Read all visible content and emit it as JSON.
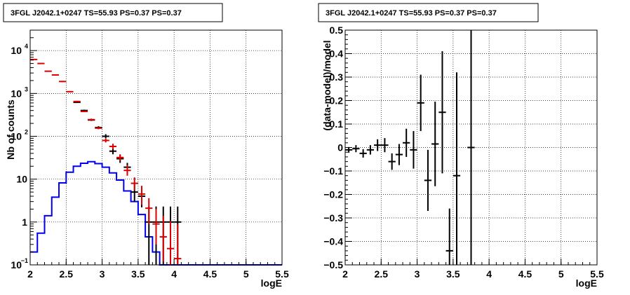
{
  "chart_data": [
    {
      "type": "histogram",
      "title": "3FGL J2042.1+0247 TS=55.93 PS=0.37 PS=0.37",
      "xlabel": "logE",
      "ylabel": "Nb of counts",
      "xlim": [
        2,
        5.5
      ],
      "ylim": [
        0.1,
        30000
      ],
      "yscale": "log",
      "grid": true,
      "xticks": [
        "2",
        "2.5",
        "3",
        "3.5",
        "4",
        "4.5",
        "5",
        "5.5"
      ],
      "yticks": [
        {
          "value": 0.1,
          "mantissa": "10",
          "exp": "−1"
        },
        {
          "value": 1,
          "mantissa": "1",
          "exp": ""
        },
        {
          "value": 10,
          "mantissa": "10",
          "exp": ""
        },
        {
          "value": 100,
          "mantissa": "10",
          "exp": "2"
        },
        {
          "value": 1000,
          "mantissa": "10",
          "exp": "3"
        },
        {
          "value": 10000,
          "mantissa": "10",
          "exp": "4"
        }
      ],
      "bin_edges": [
        2.0,
        2.1,
        2.2,
        2.3,
        2.4,
        2.5,
        2.6,
        2.7,
        2.8,
        2.9,
        3.0,
        3.1,
        3.2,
        3.3,
        3.4,
        3.5,
        3.6,
        3.7,
        3.8,
        3.9,
        4.0,
        4.1,
        4.2,
        4.3,
        4.4,
        4.5,
        4.6,
        4.7,
        4.8,
        4.9,
        5.0,
        5.1,
        5.2,
        5.3,
        5.4,
        5.5
      ],
      "series": [
        {
          "style": "step",
          "color": "#0000ee",
          "values": [
            0.2,
            0.55,
            1.4,
            3.8,
            8.2,
            14.5,
            20,
            23.5,
            25.5,
            23,
            19,
            14,
            9.5,
            5.3,
            3.0,
            1.5,
            0.45,
            0.2,
            0.1,
            0.1,
            0.1,
            0.1,
            0.1,
            0.1,
            0.1,
            0.1,
            0.1,
            0.1,
            0.1,
            0.1,
            0.1,
            0.1,
            0.1,
            0.1,
            0.1
          ]
        },
        {
          "style": "errorbar",
          "color": "#000000",
          "points": [
            {
              "x": 2.65,
              "y": 620,
              "lo": 600,
              "hi": 645
            },
            {
              "x": 2.75,
              "y": 400,
              "lo": 385,
              "hi": 418
            },
            {
              "x": 2.85,
              "y": 240,
              "lo": 228,
              "hi": 256
            },
            {
              "x": 2.95,
              "y": 160,
              "lo": 150,
              "hi": 172
            },
            {
              "x": 3.05,
              "y": 100,
              "lo": 90,
              "hi": 112
            },
            {
              "x": 3.15,
              "y": 45,
              "lo": 38,
              "hi": 53
            },
            {
              "x": 3.25,
              "y": 30,
              "lo": 24,
              "hi": 37
            },
            {
              "x": 3.35,
              "y": 19,
              "lo": 14,
              "hi": 24
            },
            {
              "x": 3.45,
              "y": 5,
              "lo": 3,
              "hi": 8
            },
            {
              "x": 3.55,
              "y": 4,
              "lo": 2.2,
              "hi": 6.5
            },
            {
              "x": 3.65,
              "y": 1,
              "lo": 0.1,
              "hi": 2.3
            },
            {
              "x": 3.75,
              "y": 1,
              "lo": 0.1,
              "hi": 2.3
            },
            {
              "x": 3.85,
              "y": 1,
              "lo": 0.1,
              "hi": 2.3
            },
            {
              "x": 3.95,
              "y": 1,
              "lo": 0.1,
              "hi": 2.3
            },
            {
              "x": 4.05,
              "y": 1,
              "lo": 0.1,
              "hi": 2.3
            }
          ]
        },
        {
          "style": "errorbar",
          "color": "#dd0000",
          "points": [
            {
              "x": 2.05,
              "y": 6200,
              "lo": 6050,
              "hi": 6350
            },
            {
              "x": 2.15,
              "y": 5000,
              "lo": 4870,
              "hi": 5130
            },
            {
              "x": 2.25,
              "y": 3300,
              "lo": 3200,
              "hi": 3400
            },
            {
              "x": 2.35,
              "y": 2700,
              "lo": 2620,
              "hi": 2780
            },
            {
              "x": 2.45,
              "y": 1900,
              "lo": 1840,
              "hi": 1960
            },
            {
              "x": 2.55,
              "y": 1100,
              "lo": 1065,
              "hi": 1135
            },
            {
              "x": 2.65,
              "y": 650,
              "lo": 630,
              "hi": 672
            },
            {
              "x": 2.75,
              "y": 380,
              "lo": 366,
              "hi": 395
            },
            {
              "x": 2.85,
              "y": 245,
              "lo": 233,
              "hi": 258
            },
            {
              "x": 2.95,
              "y": 155,
              "lo": 146,
              "hi": 165
            },
            {
              "x": 3.05,
              "y": 80,
              "lo": 72,
              "hi": 89
            },
            {
              "x": 3.15,
              "y": 58,
              "lo": 50,
              "hi": 67
            },
            {
              "x": 3.25,
              "y": 32,
              "lo": 27,
              "hi": 38
            },
            {
              "x": 3.35,
              "y": 16,
              "lo": 12,
              "hi": 21
            },
            {
              "x": 3.45,
              "y": 8,
              "lo": 5.5,
              "hi": 11
            },
            {
              "x": 3.55,
              "y": 4.5,
              "lo": 2.5,
              "hi": 7
            },
            {
              "x": 3.65,
              "y": 2.1,
              "lo": 0.9,
              "hi": 3.6
            },
            {
              "x": 3.75,
              "y": 0.9,
              "lo": 0.3,
              "hi": 2.0
            },
            {
              "x": 3.85,
              "y": 0.45,
              "lo": 0.12,
              "hi": 1.4
            },
            {
              "x": 3.95,
              "y": 0.24,
              "lo": 0.1,
              "hi": 1.05
            },
            {
              "x": 4.05,
              "y": 0.14,
              "lo": 0.1,
              "hi": 0.9
            }
          ]
        }
      ]
    },
    {
      "type": "scatter",
      "title": "3FGL J2042.1+0247 TS=55.93 PS=0.37 PS=0.37",
      "xlabel": "logE",
      "ylabel": "(data-model)/model",
      "xlim": [
        2,
        5.5
      ],
      "ylim": [
        -0.5,
        0.5
      ],
      "grid": true,
      "xticks": [
        "2",
        "2.5",
        "3",
        "3.5",
        "4",
        "4.5",
        "5",
        "5.5"
      ],
      "yticks": [
        "−0.5",
        "−0.4",
        "−0.3",
        "−0.2",
        "−0.1",
        "0",
        "0.1",
        "0.2",
        "0.3",
        "0.4",
        "0.5"
      ],
      "series": [
        {
          "style": "errorbar",
          "color": "#000000",
          "points": [
            {
              "x": 2.05,
              "y": -0.01,
              "err": 0.012
            },
            {
              "x": 2.15,
              "y": -0.005,
              "err": 0.015
            },
            {
              "x": 2.25,
              "y": -0.025,
              "err": 0.018
            },
            {
              "x": 2.35,
              "y": -0.01,
              "err": 0.02
            },
            {
              "x": 2.45,
              "y": 0.01,
              "err": 0.025
            },
            {
              "x": 2.55,
              "y": 0.01,
              "err": 0.03
            },
            {
              "x": 2.65,
              "y": -0.06,
              "err": 0.035
            },
            {
              "x": 2.75,
              "y": -0.03,
              "err": 0.045
            },
            {
              "x": 2.85,
              "y": 0.02,
              "err": 0.06
            },
            {
              "x": 2.95,
              "y": -0.01,
              "err": 0.08
            },
            {
              "x": 3.05,
              "y": 0.19,
              "err": 0.12
            },
            {
              "x": 3.15,
              "y": -0.14,
              "err": 0.13
            },
            {
              "x": 3.25,
              "y": 0.015,
              "err": 0.18
            },
            {
              "x": 3.35,
              "y": 0.15,
              "err": 0.26
            },
            {
              "x": 3.45,
              "y": -0.44,
              "err": 0.18
            },
            {
              "x": 3.55,
              "y": -0.12,
              "err": 0.44
            },
            {
              "x": 3.75,
              "y": 0.0,
              "err": 0.9
            }
          ]
        }
      ]
    }
  ]
}
